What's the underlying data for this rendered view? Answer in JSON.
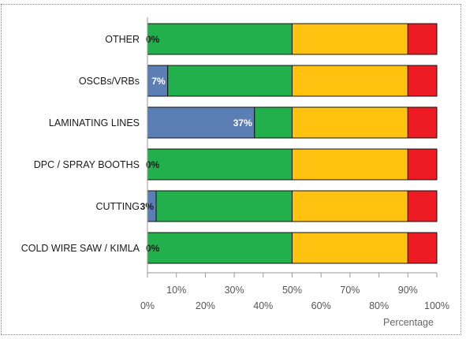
{
  "chart_data": {
    "type": "bar",
    "orientation": "horizontal",
    "stacked": true,
    "categories": [
      "OTHER",
      "OSCBs/VRBs",
      "LAMINATING LINES",
      "DPC / SPRAY BOOTHS",
      "CUTTING",
      "COLD WIRE SAW / KIMLA"
    ],
    "series": [
      {
        "values": [
          0,
          7,
          37,
          0,
          3,
          0
        ],
        "color": "#5b7fb5",
        "data_labels": [
          "0%",
          "7%",
          "37%",
          "0%",
          "3%",
          "0%"
        ]
      },
      {
        "values": [
          50,
          43,
          13,
          50,
          47,
          50
        ],
        "color": "#21b04b"
      },
      {
        "values": [
          40,
          40,
          40,
          40,
          40,
          40
        ],
        "color": "#ffc20e"
      },
      {
        "values": [
          10,
          10,
          10,
          10,
          10,
          10
        ],
        "color": "#ed1c24"
      }
    ],
    "xlim": [
      0,
      100
    ],
    "x_ticks_lower": [
      "0%",
      "20%",
      "40%",
      "60%",
      "80%",
      "100%"
    ],
    "x_ticks_upper": [
      "10%",
      "30%",
      "50%",
      "70%",
      "90%"
    ],
    "xlabel": "Percentage",
    "grid": false,
    "legend": "none"
  }
}
